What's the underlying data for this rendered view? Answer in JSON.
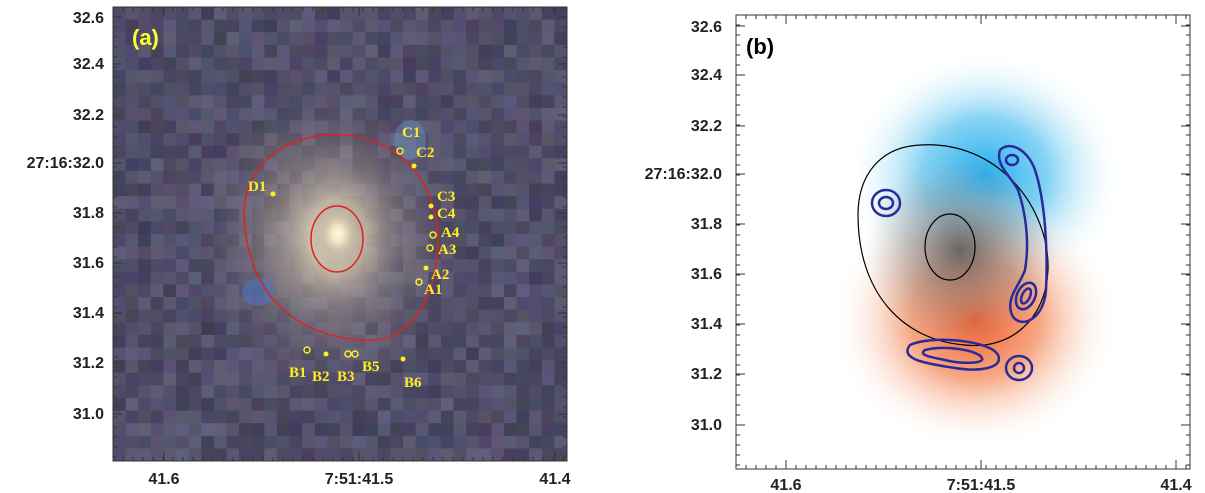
{
  "panel_a": {
    "label": "(a)",
    "y_ticks": [
      "32.6",
      "32.4",
      "32.2",
      "27:16:32.0",
      "31.8",
      "31.6",
      "31.4",
      "31.2",
      "31.0"
    ],
    "x_ticks": [
      "41.6",
      "7:51:41.5",
      "41.4"
    ],
    "markers": [
      {
        "name": "C1",
        "text": "C1"
      },
      {
        "name": "C2",
        "text": "C2"
      },
      {
        "name": "C3",
        "text": "C3"
      },
      {
        "name": "C4",
        "text": "C4"
      },
      {
        "name": "A4",
        "text": "A4"
      },
      {
        "name": "A3",
        "text": "A3"
      },
      {
        "name": "A2",
        "text": "A2"
      },
      {
        "name": "A1",
        "text": "A1"
      },
      {
        "name": "D1",
        "text": "D1"
      },
      {
        "name": "B1",
        "text": "B1"
      },
      {
        "name": "B2",
        "text": "B2"
      },
      {
        "name": "B3",
        "text": "B3"
      },
      {
        "name": "B5",
        "text": "B5"
      },
      {
        "name": "B6",
        "text": "B6"
      }
    ],
    "colors": {
      "critical_curve": "#dd2222",
      "marker": "#ffee22"
    }
  },
  "panel_b": {
    "label": "(b)",
    "y_ticks": [
      "32.6",
      "32.4",
      "32.2",
      "27:16:32.0",
      "31.8",
      "31.6",
      "31.4",
      "31.2",
      "31.0"
    ],
    "x_ticks": [
      "41.6",
      "7:51:41.5",
      "41.4"
    ],
    "colors": {
      "blue_component": "#2ab0e8",
      "red_component": "#f06a3a",
      "contour": "#2a2a99",
      "curve": "#000000"
    }
  }
}
